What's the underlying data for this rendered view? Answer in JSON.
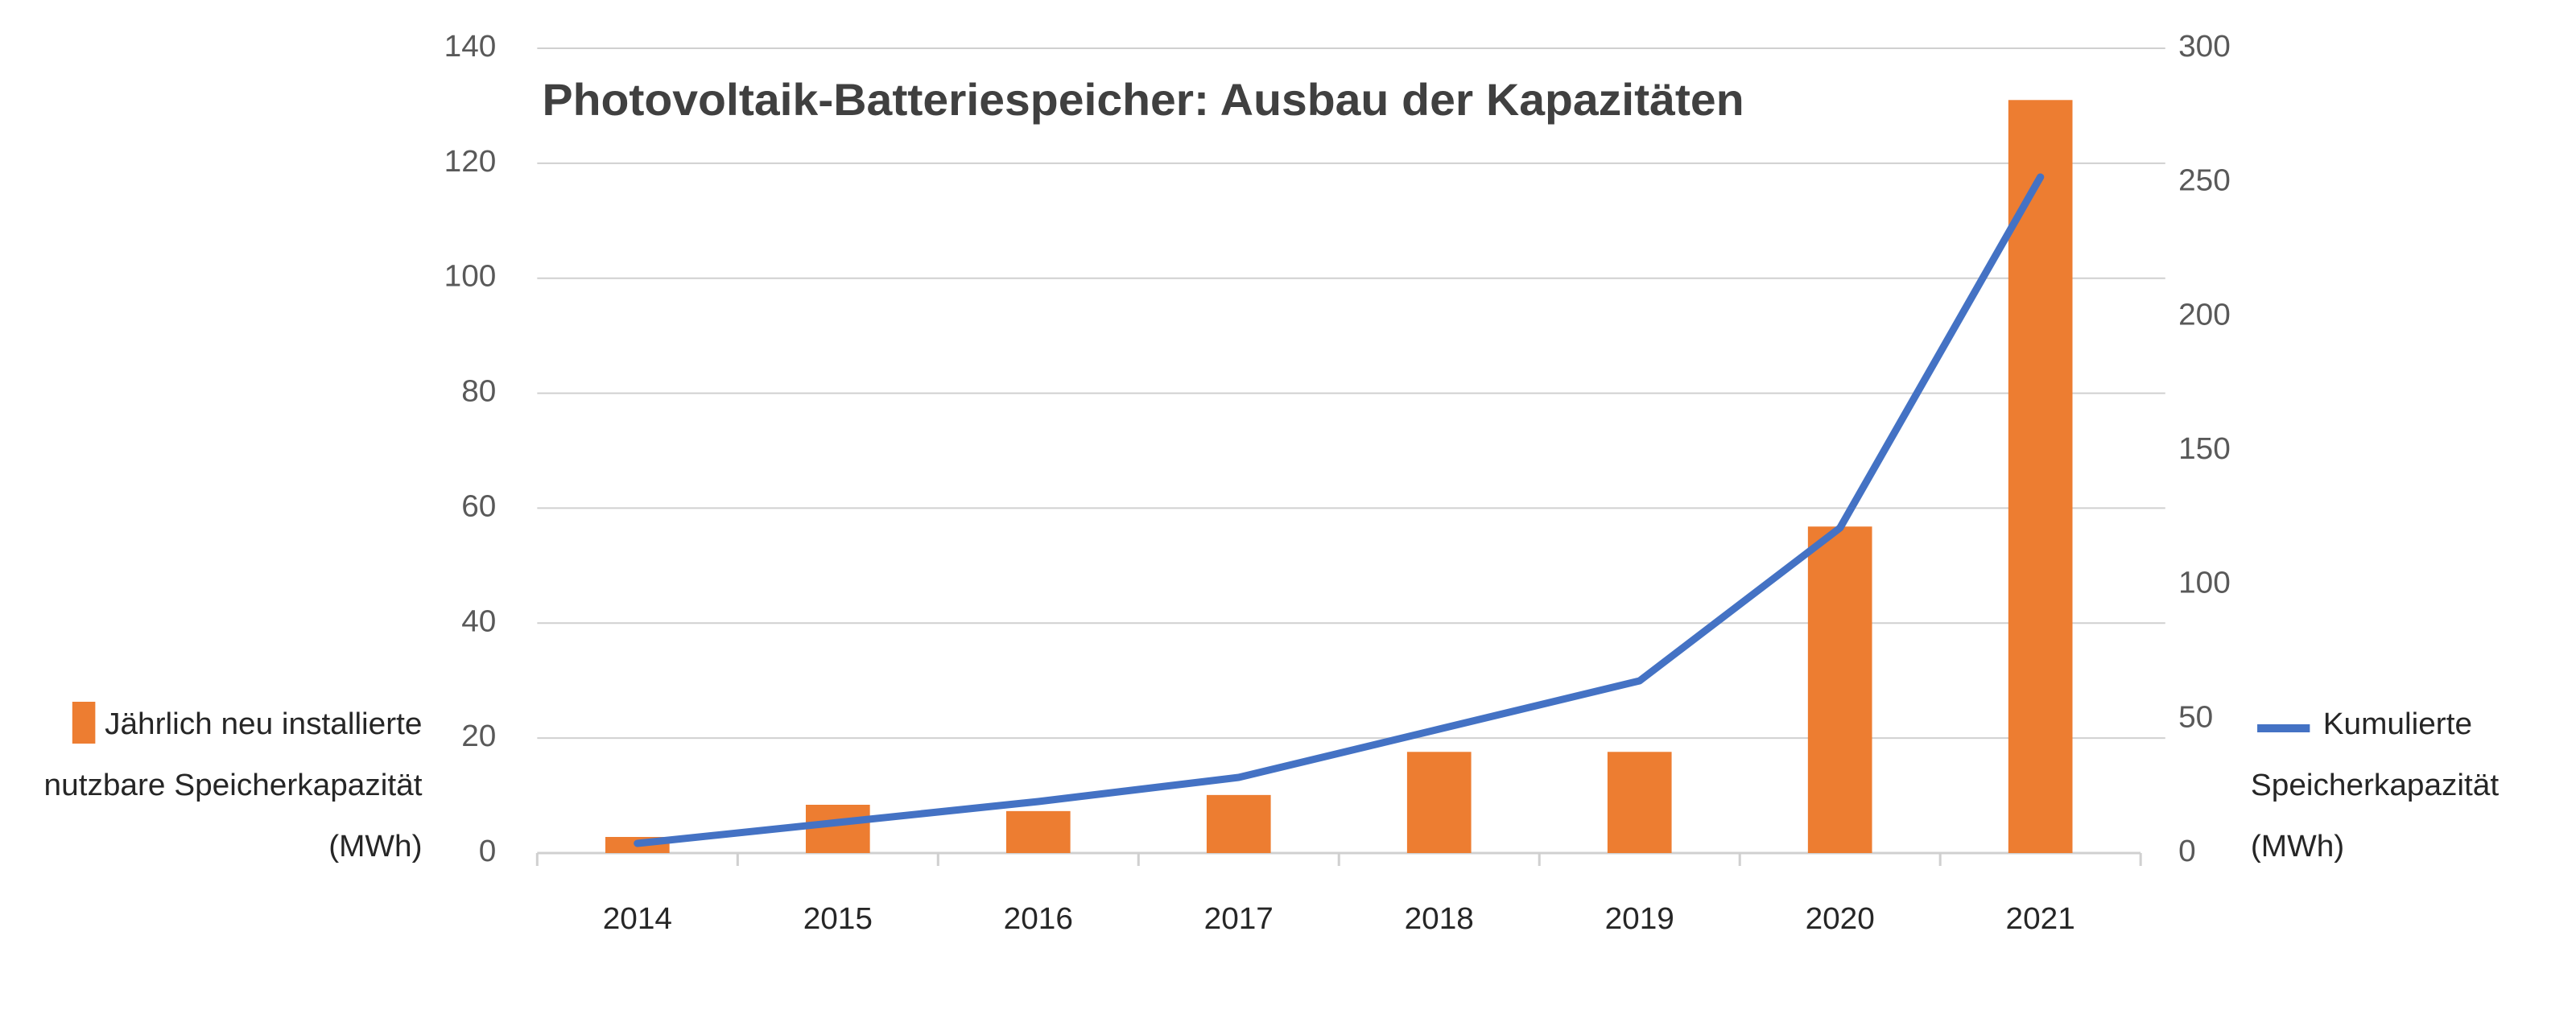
{
  "chart_data": {
    "type": "bar_line",
    "title": "Photovoltaik-Batteriespeicher: Ausbau der Kapazitäten",
    "categories": [
      "2014",
      "2015",
      "2016",
      "2017",
      "2018",
      "2019",
      "2020",
      "2021"
    ],
    "series": [
      {
        "name": "Jährlich neu installierte nutzbare Speicherkapazität (MWh)",
        "type": "bar",
        "color": "#ed7d31",
        "values": [
          2.8,
          8.4,
          7.3,
          10.1,
          17.6,
          17.6,
          56.8,
          131
        ]
      },
      {
        "name": "Kumulierte Speicherkapazität (MWh)",
        "type": "line",
        "axis": "y2",
        "color": "#4472c4",
        "values": [
          3.6,
          11.4,
          19.2,
          28.2,
          46.2,
          64.2,
          121.2,
          252
        ]
      }
    ],
    "ylim": [
      0,
      140
    ],
    "yticks": [
      0,
      20,
      40,
      60,
      80,
      100,
      120,
      140
    ],
    "y2lim": [
      0,
      300
    ],
    "y2ticks": [
      0,
      50,
      100,
      150,
      200,
      250,
      300
    ],
    "grid": true
  }
}
